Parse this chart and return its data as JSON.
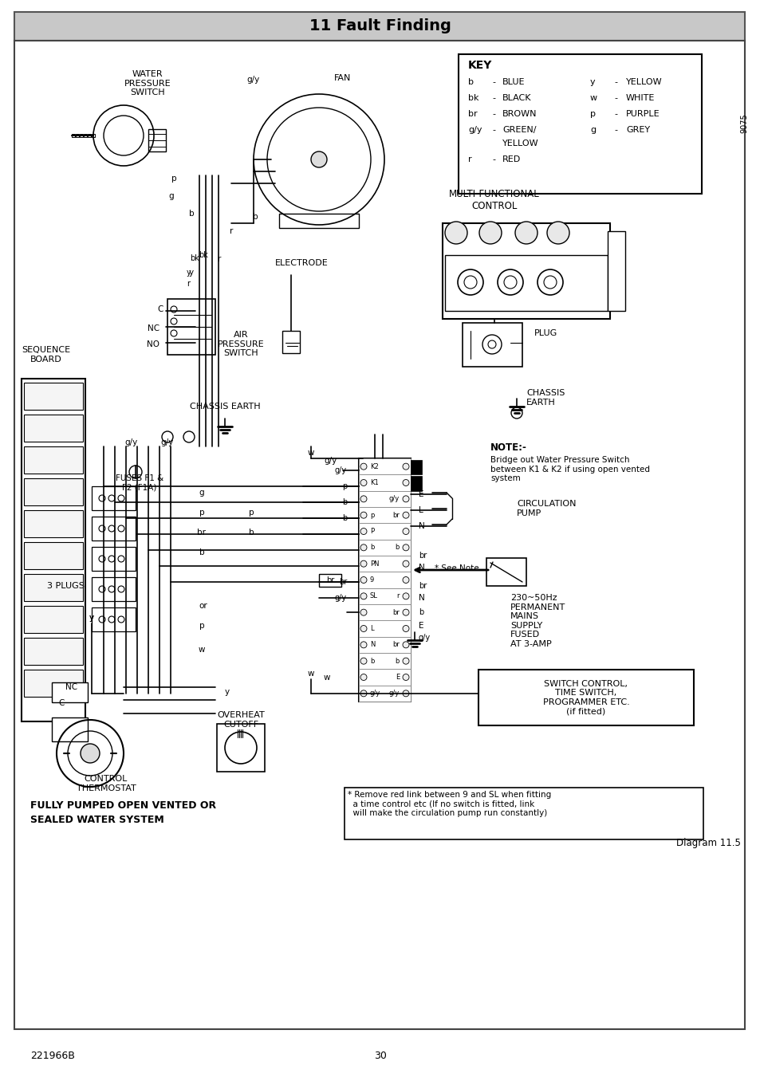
{
  "title": "11 Fault Finding",
  "footer_left": "221966B",
  "footer_center": "30",
  "diagram_label": "Diagram 11.5",
  "page_bg": "#ffffff",
  "header_bg": "#c8c8c8",
  "border_color": "#000000",
  "key_title": "KEY",
  "key_rows": [
    [
      "b",
      "BLUE",
      "y",
      "YELLOW"
    ],
    [
      "bk",
      "BLACK",
      "w",
      "WHITE"
    ],
    [
      "br",
      "BROWN",
      "p",
      "PURPLE"
    ],
    [
      "g/y",
      "GREEN/",
      "g",
      "GREY"
    ],
    [
      "",
      "YELLOW",
      "",
      ""
    ],
    [
      "r",
      "RED",
      "",
      ""
    ]
  ],
  "rotation_text": "9075",
  "note_title": "NOTE:-",
  "note_text": "Bridge out Water Pressure Switch\nbetween K1 & K2 if using open vented\nsystem",
  "circulation_pump": "CIRCULATION\nPUMP",
  "mains_supply": "230~50Hz\nPERMANENT\nMAINS\nSUPPLY\nFUSED\nAT 3-AMP",
  "switch_control": "SWITCH CONTROL,\nTIME SWITCH,\nPROGRAMMER ETC.\n(if fitted)",
  "bottom_text_1": "FULLY PUMPED OPEN VENTED OR",
  "bottom_text_2": "SEALED WATER SYSTEM",
  "asterisk_note": "* Remove red link between 9 and SL when fitting\n  a time control etc (If no switch is fitted, link\n  will make the circulation pump run constantly)",
  "see_note": "* See Note"
}
